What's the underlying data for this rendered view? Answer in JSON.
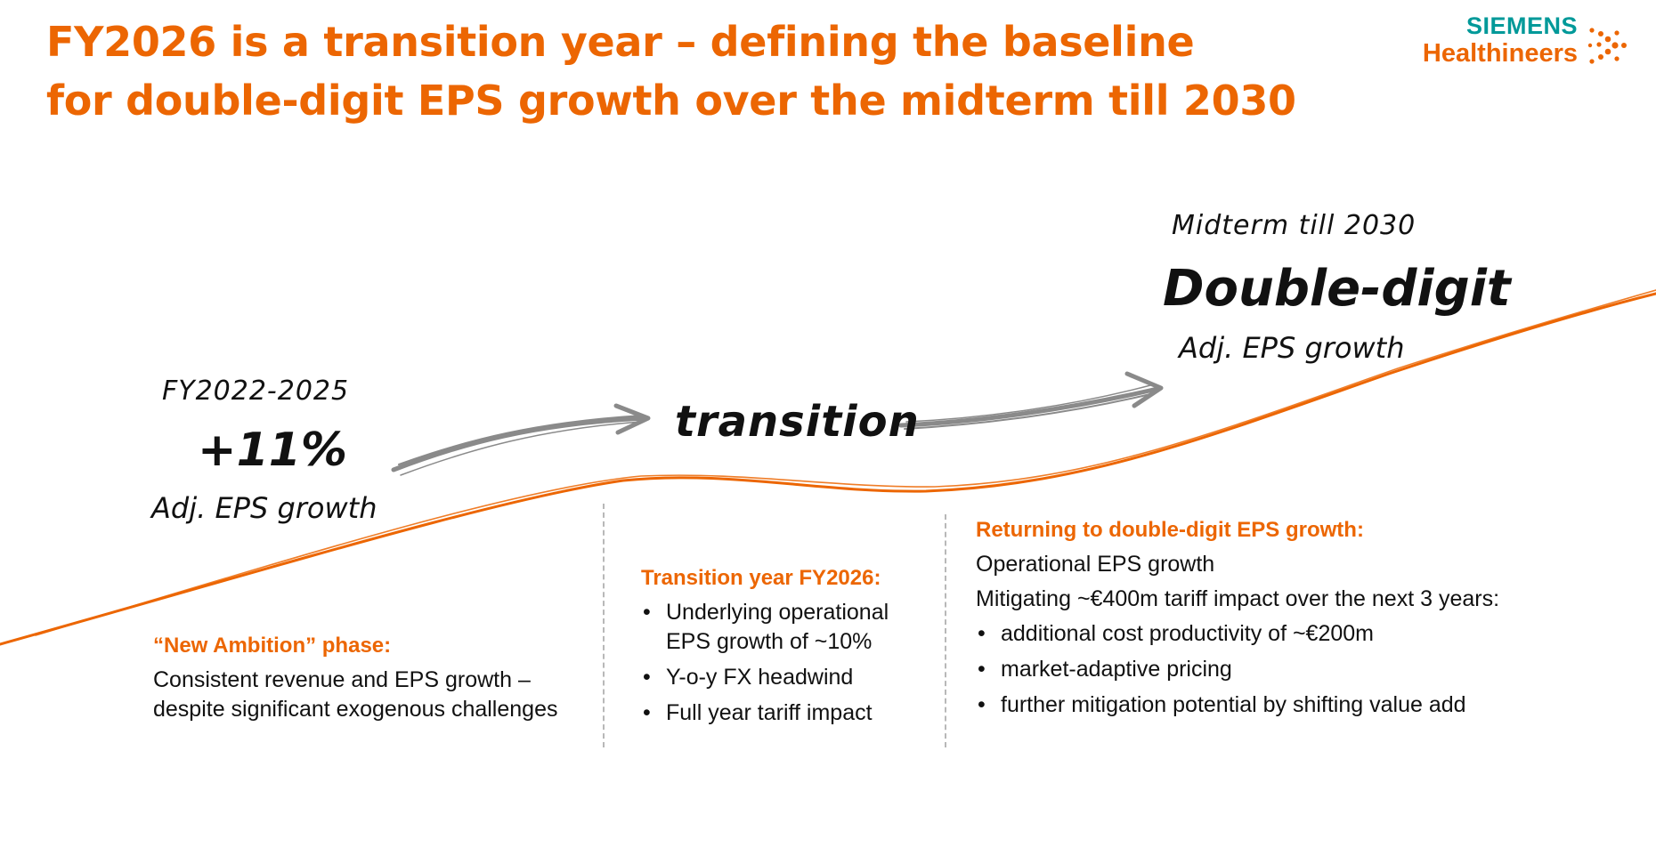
{
  "title": {
    "line1": "FY2026 is a transition year – defining the baseline",
    "line2": "for double-digit EPS growth over the midterm till 2030"
  },
  "logo": {
    "brand_top": "SIEMENS",
    "brand_bottom": "Healthineers",
    "icon": "dots-icon"
  },
  "phase1": {
    "period": "FY2022-2025",
    "value": "+11%",
    "metric": "Adj. EPS growth",
    "heading": "“New Ambition” phase:",
    "text_lines": [
      "Consistent revenue and EPS growth –",
      "despite significant exogenous challenges"
    ]
  },
  "phase2": {
    "label": "transition",
    "heading": "Transition year FY2026:",
    "bullets": [
      "Underlying operational EPS growth of ~10%",
      "Y-o-y FX headwind",
      "Full year tariff impact"
    ]
  },
  "phase3": {
    "period": "Midterm till 2030",
    "value": "Double-digit",
    "metric": "Adj. EPS growth",
    "heading": "Returning to double-digit EPS growth:",
    "text_lines": [
      "Operational EPS growth",
      "Mitigating ~€400m tariff impact over the next 3 years:"
    ],
    "bullets": [
      "additional cost productivity of ~€200m",
      "market-adaptive pricing",
      "further mitigation potential by shifting value add"
    ]
  },
  "colors": {
    "accent": "#ec6602",
    "brand_teal": "#009999",
    "arrow_gray": "#8a8a8a",
    "divider": "#b8b8b8"
  }
}
